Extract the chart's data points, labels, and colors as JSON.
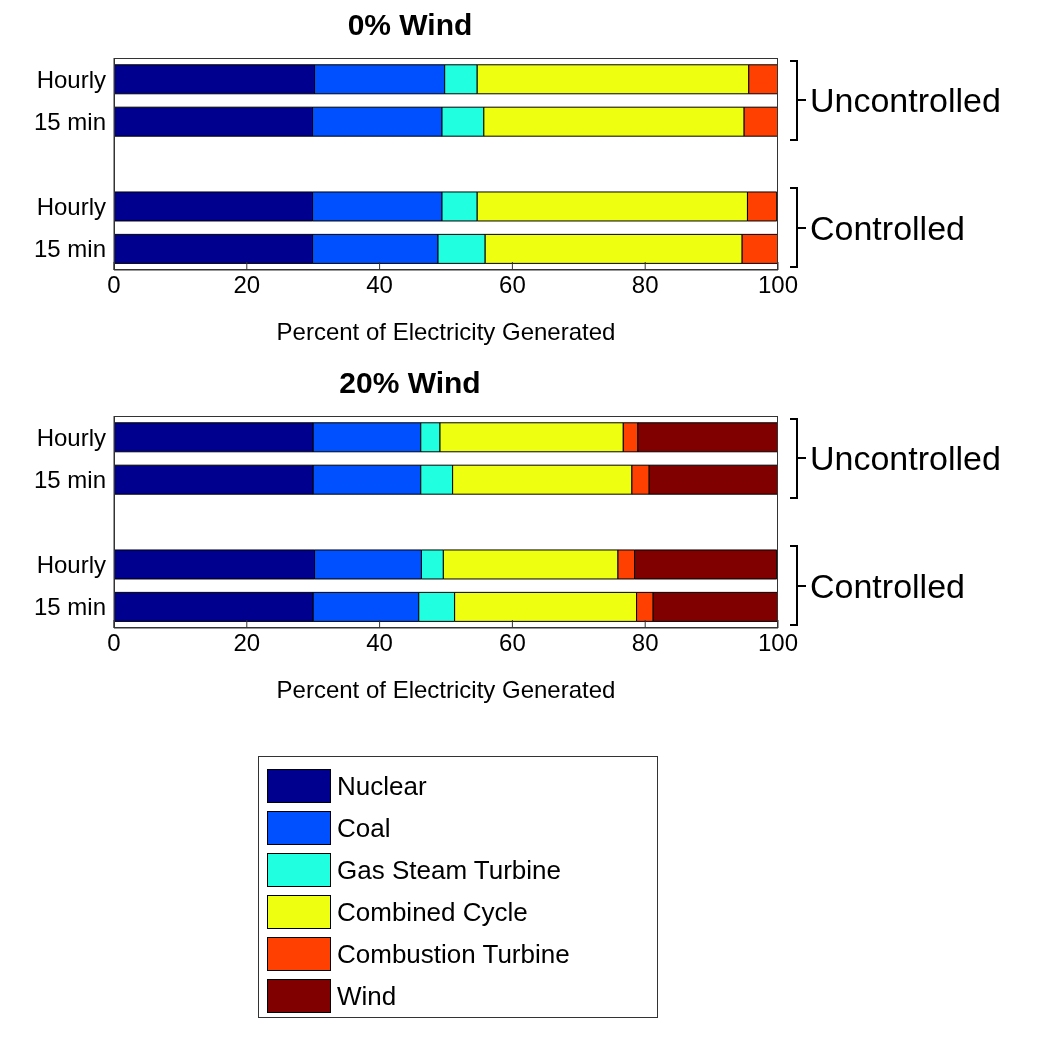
{
  "chart_data": [
    {
      "type": "bar",
      "orientation": "horizontal",
      "stacked": true,
      "title": "0% Wind",
      "xlabel": "Percent of Electricity Generated",
      "categories": [
        "Hourly",
        "15 min",
        null,
        "Hourly",
        "15 min"
      ],
      "xlim": [
        0,
        100
      ],
      "xticks": [
        0,
        20,
        40,
        60,
        80,
        100
      ],
      "grid": false,
      "legend": false,
      "annotations": [
        "Uncontrolled",
        "Controlled"
      ],
      "series": [
        {
          "color": "#00008f",
          "values": [
            30.2,
            29.9,
            null,
            29.9,
            29.9
          ]
        },
        {
          "color": "#0050ff",
          "values": [
            19.6,
            19.5,
            null,
            19.5,
            18.9
          ]
        },
        {
          "color": "#20ffdf",
          "values": [
            4.9,
            6.3,
            null,
            5.3,
            7.1
          ]
        },
        {
          "color": "#efff10",
          "values": [
            40.9,
            39.2,
            null,
            40.7,
            38.7
          ]
        },
        {
          "color": "#ff4000",
          "values": [
            4.4,
            5.1,
            null,
            4.4,
            5.4
          ]
        }
      ]
    },
    {
      "type": "bar",
      "orientation": "horizontal",
      "stacked": true,
      "title": "20% Wind",
      "xlabel": "Percent of Electricity Generated",
      "categories": [
        "Hourly",
        "15 min",
        null,
        "Hourly",
        "15 min"
      ],
      "xlim": [
        0,
        100
      ],
      "xticks": [
        0,
        20,
        40,
        60,
        80,
        100
      ],
      "grid": false,
      "legend": "bottom",
      "annotations": [
        "Uncontrolled",
        "Controlled"
      ],
      "series": [
        {
          "name": "Nuclear",
          "color": "#00008f",
          "values": [
            30.0,
            30.0,
            null,
            30.2,
            30.0
          ]
        },
        {
          "name": "Coal",
          "color": "#0050ff",
          "values": [
            16.2,
            16.2,
            null,
            16.1,
            15.9
          ]
        },
        {
          "name": "Gas Steam Turbine",
          "color": "#20ffdf",
          "values": [
            2.9,
            4.8,
            null,
            3.3,
            5.4
          ]
        },
        {
          "name": "Combined Cycle",
          "color": "#efff10",
          "values": [
            27.6,
            27.0,
            null,
            26.3,
            27.4
          ]
        },
        {
          "name": "Combustion Turbine",
          "color": "#ff4000",
          "values": [
            2.2,
            2.6,
            null,
            2.5,
            2.5
          ]
        },
        {
          "name": "Wind",
          "color": "#800000",
          "values": [
            21.1,
            19.4,
            null,
            21.4,
            18.8
          ]
        }
      ]
    }
  ]
}
